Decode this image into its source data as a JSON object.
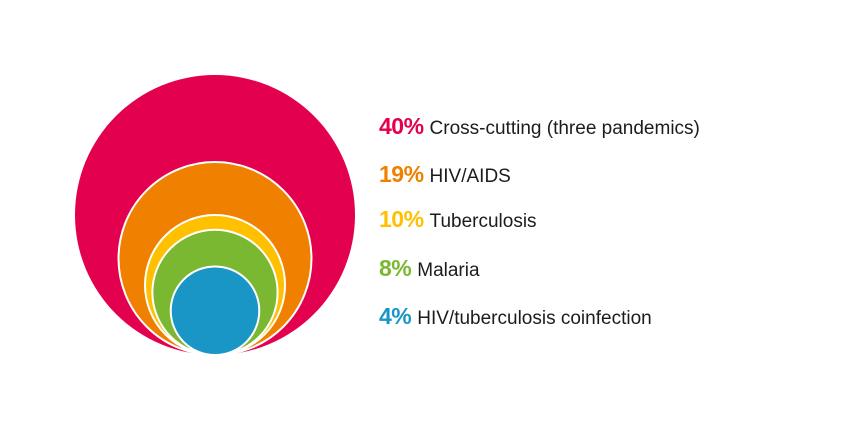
{
  "chart_data": {
    "type": "pie",
    "style": "nested-circles",
    "categories": [
      "Cross-cutting (three pandemics)",
      "HIV/AIDS",
      "Tuberculosis",
      "Malaria",
      "HIV/tuberculosis coinfection"
    ],
    "values": [
      40,
      19,
      10,
      8,
      4
    ],
    "value_labels": [
      "40%",
      "19%",
      "10%",
      "8%",
      "4%"
    ],
    "unit": "%",
    "colors": [
      "#e2004f",
      "#f08000",
      "#ffc000",
      "#7ab832",
      "#1a96c6"
    ],
    "legend_placement": "right"
  }
}
